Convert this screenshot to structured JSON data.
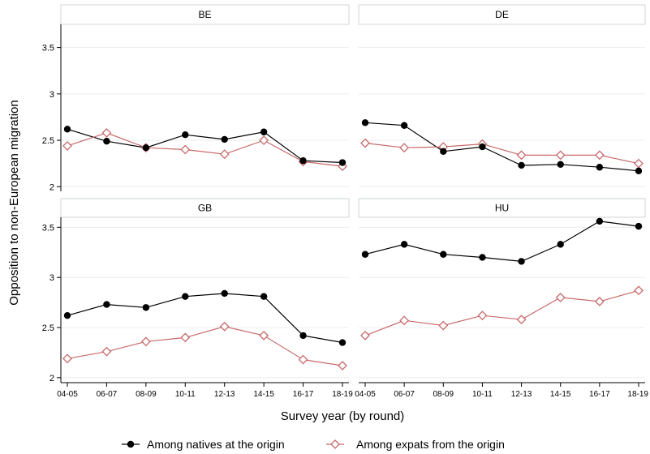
{
  "chart_data": {
    "type": "line",
    "panels": [
      "BE",
      "DE",
      "GB",
      "HU"
    ],
    "categories": [
      "04-05",
      "06-07",
      "08-09",
      "10-11",
      "12-13",
      "14-15",
      "16-17",
      "18-19"
    ],
    "x_tick_labels_right": [
      "04-05",
      "06-07",
      "08-09",
      "10-11",
      "12-13",
      "14-15",
      "16-17",
      "18-19"
    ],
    "x_tick_labels_left": [
      "04-05",
      "06-07",
      "08-09",
      "10-11",
      "12-13",
      "14-15",
      "16-17",
      "18-19"
    ],
    "y_ticks_top": [
      "3.5",
      "3",
      "2.5",
      "2"
    ],
    "y_ticks_bottom": [
      "3.5",
      "3",
      "2.5",
      "2"
    ],
    "ylim_top": [
      1.95,
      3.75
    ],
    "ylim_bottom": [
      1.95,
      3.6
    ],
    "ylabel": "Opposition to non-European migration",
    "xlabel": "Survey year (by round)",
    "grid": true,
    "legend_position": "bottom",
    "series_styles": [
      {
        "name": "Among natives at the origin",
        "color": "#000000",
        "marker": "filled-circle"
      },
      {
        "name": "Among expats from the origin",
        "color": "#c8696b",
        "marker": "hollow-diamond"
      }
    ],
    "data": {
      "BE": {
        "natives": [
          2.62,
          2.49,
          2.42,
          2.56,
          2.51,
          2.59,
          2.28,
          2.26
        ],
        "expats": [
          2.44,
          2.58,
          2.42,
          2.4,
          2.35,
          2.5,
          2.27,
          2.22
        ]
      },
      "DE": {
        "natives": [
          2.69,
          2.66,
          2.38,
          2.43,
          2.23,
          2.24,
          2.21,
          2.17
        ],
        "expats": [
          2.47,
          2.42,
          2.43,
          2.46,
          2.34,
          2.34,
          2.34,
          2.25
        ]
      },
      "GB": {
        "natives": [
          2.62,
          2.73,
          2.7,
          2.81,
          2.84,
          2.81,
          2.42,
          2.35
        ],
        "expats": [
          2.19,
          2.26,
          2.36,
          2.4,
          2.51,
          2.42,
          2.18,
          2.12
        ]
      },
      "HU": {
        "natives": [
          3.23,
          3.33,
          3.23,
          3.2,
          3.16,
          3.33,
          3.56,
          3.51
        ],
        "expats": [
          2.42,
          2.57,
          2.52,
          2.62,
          2.58,
          2.8,
          2.76,
          2.87
        ]
      }
    }
  }
}
